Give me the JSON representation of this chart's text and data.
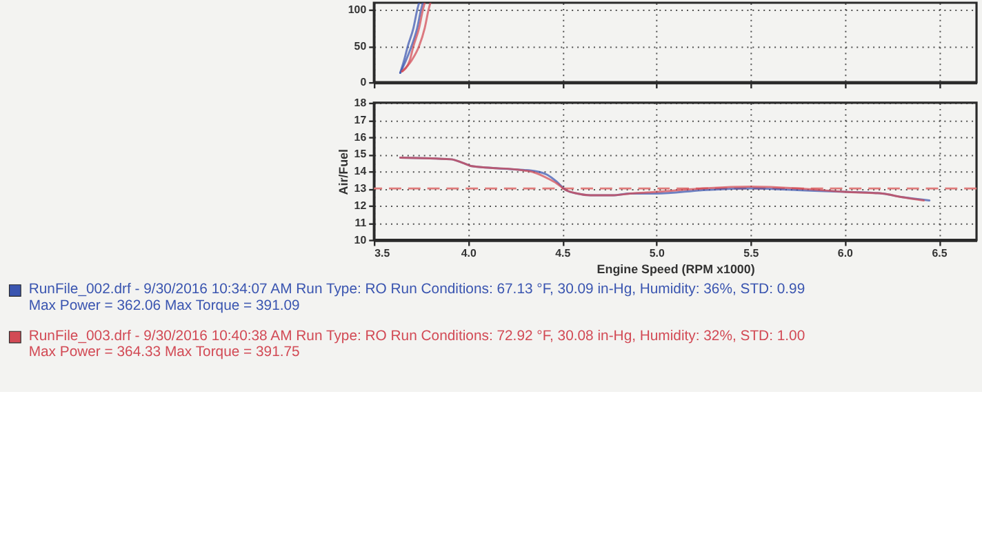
{
  "chart_data": [
    {
      "type": "line",
      "xlim": [
        3.5,
        6.7
      ],
      "xticks": [
        3.5,
        4,
        4.5,
        5,
        5.5,
        6,
        6.5
      ],
      "ylim": [
        0,
        110
      ],
      "yticks": [
        0,
        50,
        100
      ],
      "tick_labels": "y",
      "grid": true,
      "series": [
        {
          "color": "#3a55b0",
          "x": [
            3.64,
            3.66,
            3.68,
            3.71,
            3.73,
            3.74
          ],
          "values": [
            13,
            30,
            50,
            75,
            100,
            110
          ]
        },
        {
          "color": "#3a55b0",
          "x": [
            3.64,
            3.67,
            3.7,
            3.73,
            3.75,
            3.76
          ],
          "values": [
            13,
            30,
            50,
            75,
            100,
            110
          ]
        },
        {
          "color": "#d24a55",
          "x": [
            3.65,
            3.69,
            3.71,
            3.74,
            3.76,
            3.77
          ],
          "values": [
            15,
            30,
            50,
            75,
            100,
            110
          ]
        },
        {
          "color": "#d24a55",
          "x": [
            3.65,
            3.7,
            3.74,
            3.77,
            3.79,
            3.8
          ],
          "values": [
            15,
            30,
            50,
            75,
            100,
            110
          ]
        }
      ]
    },
    {
      "type": "line",
      "xlabel": "Engine Speed (RPM x1000)",
      "ylabel": "Air/Fuel",
      "xlim": [
        3.5,
        6.7
      ],
      "xticks": [
        3.5,
        {
          "value": 4,
          "label": "4.0"
        },
        4.5,
        {
          "value": 5,
          "label": "5.0"
        },
        5.5,
        {
          "value": 6,
          "label": "6.0"
        },
        6.5
      ],
      "ylim": [
        10,
        18
      ],
      "yticks": [
        10,
        11,
        12,
        13,
        14,
        15,
        16,
        17,
        18
      ],
      "grid": true,
      "legend": "bottom left",
      "ref_lines": [
        {
          "axis": "y",
          "value": 13,
          "color": "#e07b7b",
          "line_style": "dashed"
        }
      ],
      "series": [
        {
          "name": "RunFile_002.drf - 9/30/2016 10:34:07 AM  Run Type: RO  Run Conditions: 67.13 °F, 30.09 in-Hg,  Humidity:  36%, STD: 0.99\nMax Power = 362.06  Max Torque = 391.09",
          "color": "#3a55b0",
          "x": [
            3.64,
            3.91,
            3.97,
            4.02,
            4.12,
            4.26,
            4.36,
            4.42,
            4.47,
            4.52,
            4.58,
            4.65,
            4.77,
            4.86,
            5.0,
            5.25,
            5.5,
            5.75,
            6.0,
            6.2,
            6.3,
            6.45
          ],
          "values": [
            14.8,
            14.7,
            14.5,
            14.3,
            14.2,
            14.1,
            14.0,
            13.8,
            13.4,
            12.9,
            12.7,
            12.6,
            12.6,
            12.7,
            12.7,
            12.9,
            13.0,
            12.9,
            12.8,
            12.7,
            12.5,
            12.3
          ]
        },
        {
          "name": "RunFile_003.drf - 9/30/2016 10:40:38 AM  Run Type: RO  Run Conditions: 72.92 °F, 30.08 in-Hg,  Humidity:  32%, STD: 1.00\nMax Power = 364.33  Max Torque = 391.75",
          "color": "#d24a55",
          "x": [
            3.64,
            3.91,
            3.97,
            4.02,
            4.12,
            4.26,
            4.36,
            4.42,
            4.47,
            4.52,
            4.58,
            4.65,
            4.77,
            4.86,
            5.0,
            5.25,
            5.5,
            5.75,
            6.0,
            6.2,
            6.3,
            6.42
          ],
          "values": [
            14.8,
            14.7,
            14.5,
            14.3,
            14.2,
            14.1,
            13.9,
            13.6,
            13.3,
            12.9,
            12.7,
            12.6,
            12.6,
            12.7,
            12.8,
            13.0,
            13.1,
            13.0,
            12.8,
            12.7,
            12.5,
            12.3
          ]
        }
      ]
    }
  ]
}
